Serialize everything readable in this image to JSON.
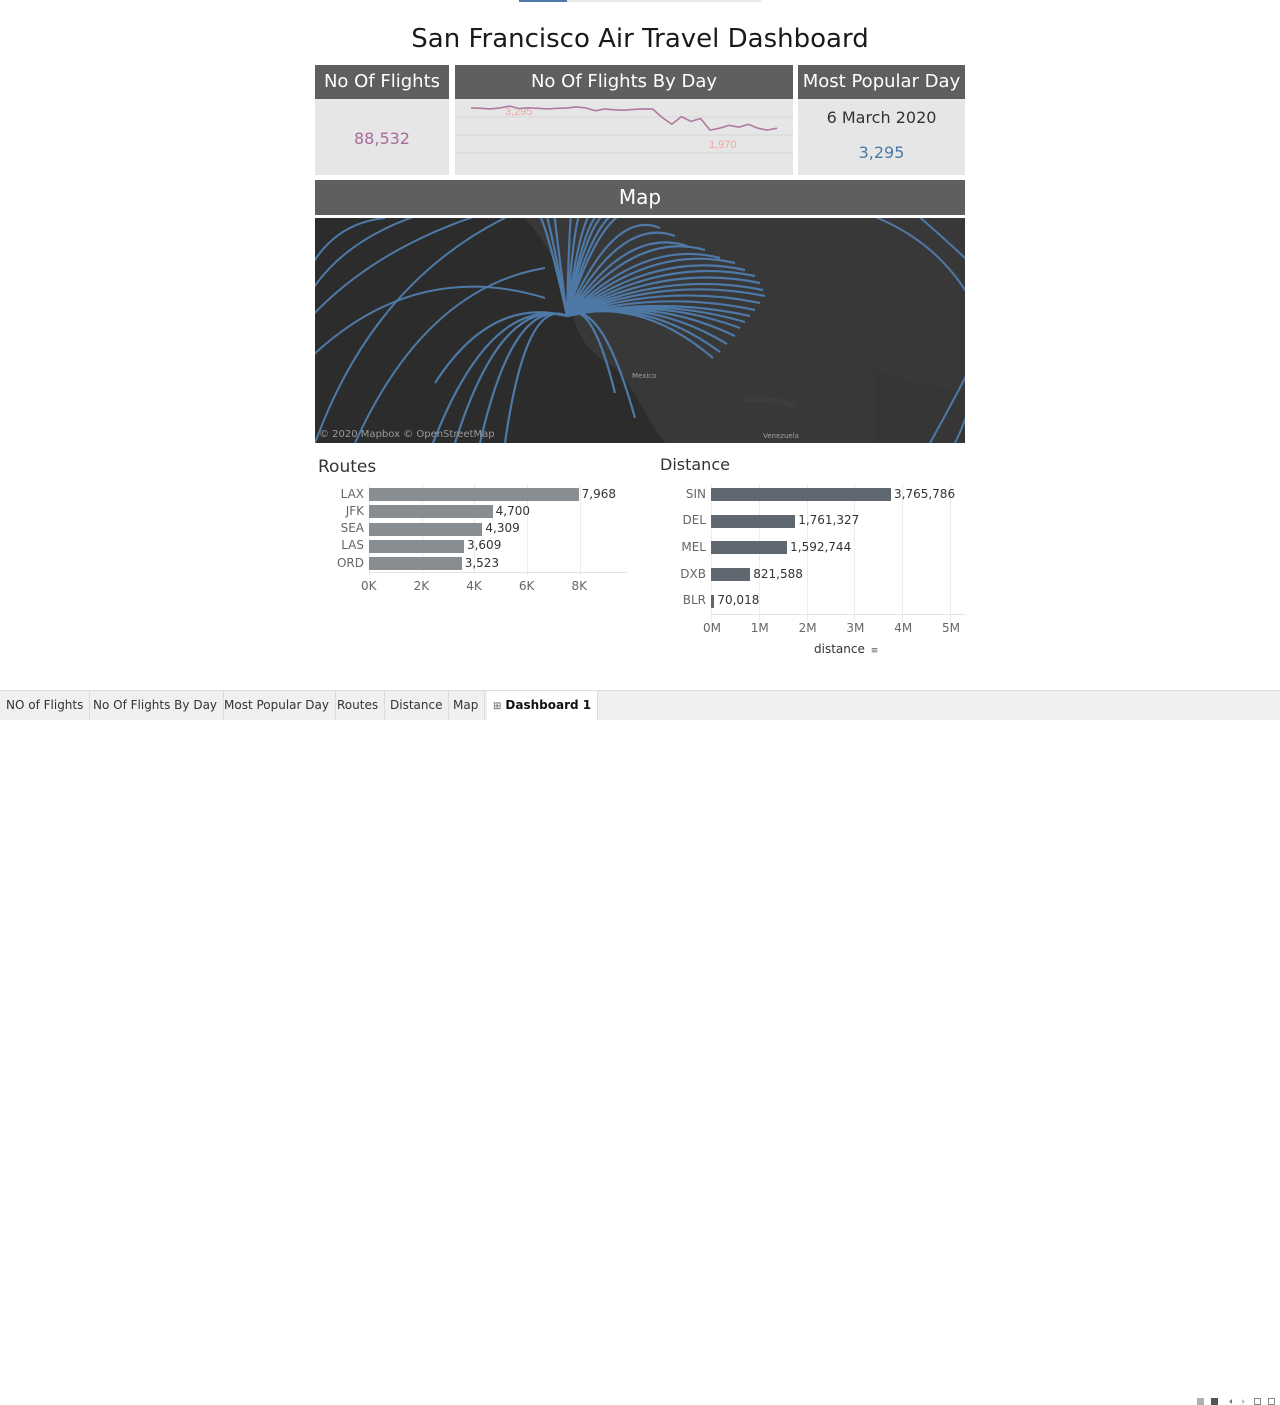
{
  "dashboard": {
    "title": "San Francisco Air Travel Dashboard"
  },
  "kpi_flights": {
    "header": "No Of Flights",
    "value": "88,532",
    "value_color": "#a96a9c"
  },
  "kpi_by_day": {
    "header": "No Of Flights By Day",
    "max_label": "3,295",
    "min_label": "1,970",
    "line_color": "#b07aa1",
    "label_color": "#f4a6a0"
  },
  "kpi_popular": {
    "header": "Most Popular Day",
    "date": "6 March 2020",
    "value": "3,295",
    "value_color": "#4e79a7"
  },
  "map": {
    "header": "Map",
    "credit": "© 2020 Mapbox © OpenStreetMap",
    "label_mexico": "Mexico",
    "label_venezuela": "Venezuela",
    "route_color": "#4e79a7"
  },
  "routes": {
    "title": "Routes",
    "bar_color": "#888d92",
    "ticks": [
      "0K",
      "2K",
      "4K",
      "6K",
      "8K"
    ]
  },
  "distance": {
    "title": "Distance",
    "bar_color": "#5f6770",
    "ticks": [
      "0M",
      "1M",
      "2M",
      "3M",
      "4M",
      "5M"
    ],
    "axis_title": "distance"
  },
  "chart_data": [
    {
      "type": "line",
      "name": "No Of Flights By Day",
      "values": [
        3200,
        3180,
        3150,
        3200,
        3295,
        3170,
        3200,
        3180,
        3150,
        3180,
        3190,
        3250,
        3200,
        3050,
        3150,
        3100,
        3080,
        3120,
        3150,
        3140,
        2700,
        2350,
        2750,
        2500,
        2650,
        2050,
        2150,
        2300,
        2200,
        2350,
        2150,
        2050,
        2150
      ],
      "annotations": {
        "max": "3,295",
        "min": "1,970"
      }
    },
    {
      "type": "bar",
      "title": "Routes",
      "categories": [
        "LAX",
        "JFK",
        "SEA",
        "LAS",
        "ORD"
      ],
      "values": [
        7968,
        4700,
        4309,
        3609,
        3523
      ],
      "value_labels": [
        "7,968",
        "4,700",
        "4,309",
        "3,609",
        "3,523"
      ],
      "xlim": [
        0,
        9500
      ]
    },
    {
      "type": "bar",
      "title": "Distance",
      "xlabel": "distance",
      "categories": [
        "SIN",
        "DEL",
        "MEL",
        "DXB",
        "BLR"
      ],
      "values": [
        3765786,
        1761327,
        1592744,
        821588,
        70018
      ],
      "value_labels": [
        "3,765,786",
        "1,761,327",
        "1,592,744",
        "821,588",
        "70,018"
      ],
      "xlim": [
        0,
        5000000
      ]
    }
  ],
  "tabs": [
    {
      "label": "NO of Flights",
      "active": false
    },
    {
      "label": "No Of Flights By Day",
      "active": false
    },
    {
      "label": "Most Popular Day",
      "active": false
    },
    {
      "label": "Routes",
      "active": false
    },
    {
      "label": "Distance",
      "active": false
    },
    {
      "label": "Map",
      "active": false
    },
    {
      "label": "Dashboard 1",
      "active": true,
      "icon": "dashboard-grid-icon"
    }
  ],
  "controls": [
    "grid-view-icon",
    "filmstrip-view-icon",
    "prev-sheet-icon",
    "next-sheet-icon",
    "fullscreen-icon"
  ]
}
